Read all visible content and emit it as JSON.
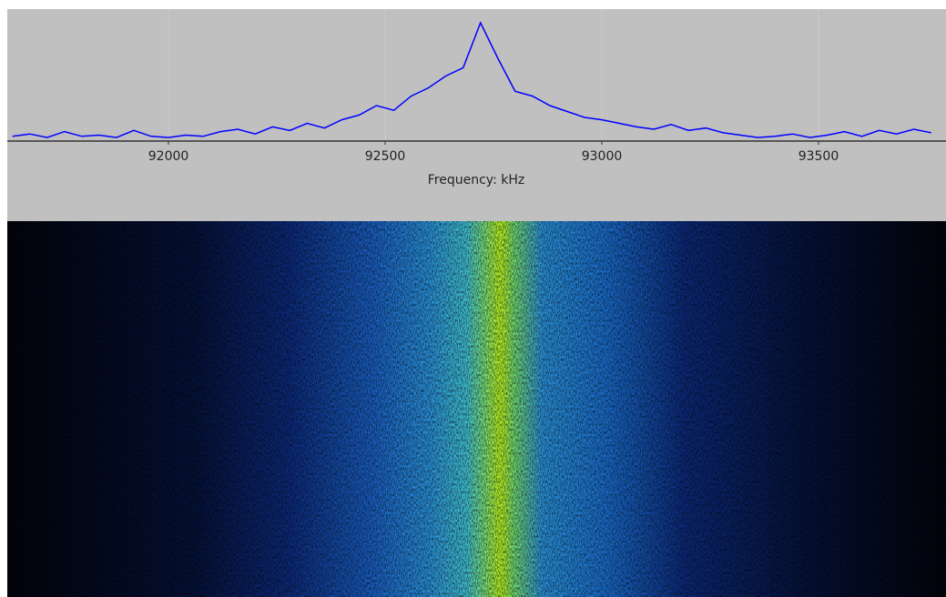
{
  "chart_data": {
    "type": "line",
    "x_label": "Frequency: kHz",
    "x": [
      91640,
      91680,
      91720,
      91760,
      91800,
      91840,
      91880,
      91920,
      91960,
      92000,
      92040,
      92080,
      92120,
      92160,
      92200,
      92240,
      92280,
      92320,
      92360,
      92400,
      92440,
      92480,
      92520,
      92560,
      92600,
      92640,
      92680,
      92720,
      92760,
      92800,
      92840,
      92880,
      92920,
      92960,
      93000,
      93040,
      93080,
      93120,
      93160,
      93200,
      93240,
      93280,
      93320,
      93360,
      93400,
      93440,
      93480,
      93520,
      93560,
      93600,
      93640,
      93680,
      93720,
      93760
    ],
    "series": [
      {
        "color": "#0000ff",
        "values": [
          4,
          6,
          3,
          8,
          4,
          5,
          3,
          9,
          4,
          3,
          5,
          4,
          8,
          10,
          6,
          12,
          9,
          15,
          11,
          18,
          22,
          30,
          26,
          38,
          45,
          55,
          62,
          100,
          70,
          42,
          38,
          30,
          25,
          20,
          18,
          15,
          12,
          10,
          14,
          9,
          11,
          7,
          5,
          3,
          4,
          6,
          3,
          5,
          8,
          4,
          9,
          6,
          10,
          7
        ]
      }
    ],
    "xlim": [
      91628,
      93790
    ],
    "ylim": [
      0,
      100
    ],
    "xticks": [
      92000,
      92500,
      93000,
      93500
    ],
    "grid": true
  }
}
